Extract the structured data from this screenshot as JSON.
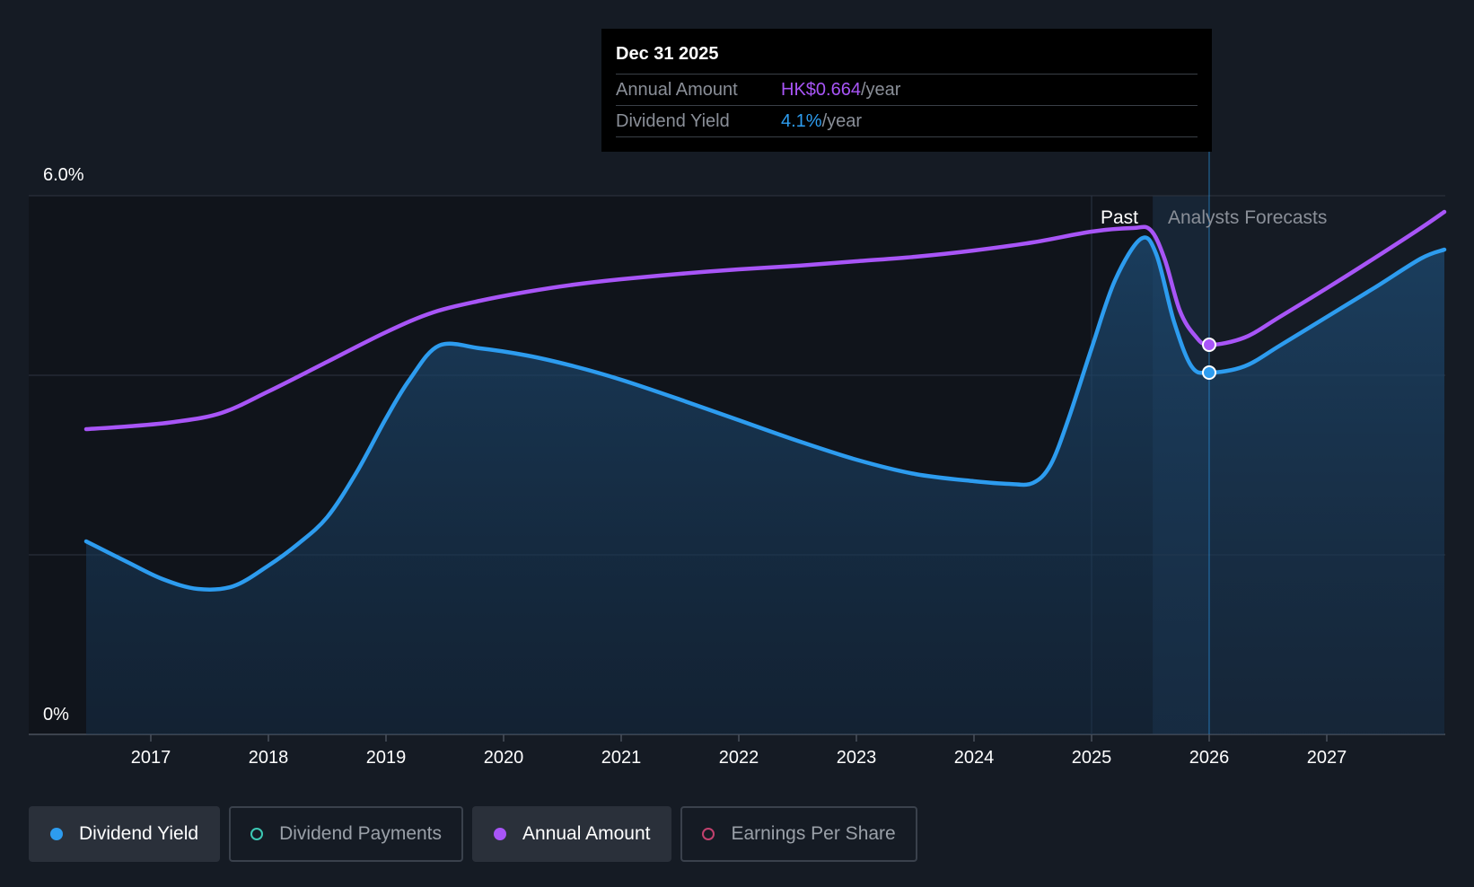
{
  "tooltip": {
    "date": "Dec 31 2025",
    "rows": [
      {
        "label": "Annual Amount",
        "value": "HK$0.664",
        "unit": "/year",
        "color": "#a855f7"
      },
      {
        "label": "Dividend Yield",
        "value": "4.1%",
        "unit": "/year",
        "color": "#2d9cef"
      }
    ]
  },
  "regions": {
    "past": "Past",
    "forecast": "Analysts Forecasts"
  },
  "legend": [
    {
      "label": "Dividend Yield",
      "color": "#2d9cef",
      "active": true,
      "filled": true
    },
    {
      "label": "Dividend Payments",
      "color": "#3cc8b4",
      "active": false,
      "filled": false
    },
    {
      "label": "Annual Amount",
      "color": "#a855f7",
      "active": true,
      "filled": true
    },
    {
      "label": "Earnings Per Share",
      "color": "#c2416e",
      "active": false,
      "filled": false
    }
  ],
  "chart_data": {
    "type": "line",
    "y_ticks": [
      "6.0%",
      "0%"
    ],
    "ylim": [
      0,
      6.0
    ],
    "x_ticks": [
      "2017",
      "2018",
      "2019",
      "2020",
      "2021",
      "2022",
      "2023",
      "2024",
      "2025",
      "2026",
      "2027"
    ],
    "past_end": 2025.52,
    "highlight_x": 2026.0,
    "series": [
      {
        "name": "Dividend Yield",
        "color": "#2d9cef",
        "area": true,
        "x": [
          2016.45,
          2016.8,
          2017.1,
          2017.4,
          2017.7,
          2018.0,
          2018.25,
          2018.5,
          2018.75,
          2019.0,
          2019.2,
          2019.45,
          2019.8,
          2020.2,
          2020.6,
          2021.0,
          2021.5,
          2022.0,
          2022.5,
          2023.0,
          2023.5,
          2024.0,
          2024.3,
          2024.5,
          2024.65,
          2024.8,
          2025.0,
          2025.2,
          2025.42,
          2025.55,
          2025.7,
          2025.85,
          2026.0,
          2026.3,
          2026.6,
          2027.0,
          2027.4,
          2027.8,
          2028.0
        ],
        "y": [
          2.15,
          1.92,
          1.73,
          1.62,
          1.65,
          1.88,
          2.12,
          2.42,
          2.92,
          3.52,
          3.95,
          4.33,
          4.3,
          4.22,
          4.1,
          3.95,
          3.73,
          3.5,
          3.27,
          3.06,
          2.9,
          2.82,
          2.79,
          2.8,
          3.0,
          3.5,
          4.3,
          5.06,
          5.52,
          5.35,
          4.6,
          4.1,
          4.03,
          4.1,
          4.33,
          4.65,
          4.97,
          5.3,
          5.4
        ]
      },
      {
        "name": "Annual Amount",
        "color": "#a855f7",
        "area": false,
        "x": [
          2016.45,
          2016.8,
          2017.2,
          2017.6,
          2018.0,
          2018.5,
          2019.0,
          2019.4,
          2019.8,
          2020.2,
          2020.6,
          2021.0,
          2021.5,
          2022.0,
          2022.5,
          2023.0,
          2023.5,
          2024.0,
          2024.5,
          2025.0,
          2025.35,
          2025.5,
          2025.62,
          2025.75,
          2025.88,
          2026.0,
          2026.3,
          2026.6,
          2027.0,
          2027.4,
          2027.8,
          2028.0
        ],
        "y": [
          3.4,
          3.43,
          3.48,
          3.58,
          3.82,
          4.15,
          4.48,
          4.7,
          4.83,
          4.93,
          5.01,
          5.07,
          5.13,
          5.18,
          5.22,
          5.27,
          5.32,
          5.39,
          5.48,
          5.6,
          5.64,
          5.62,
          5.3,
          4.72,
          4.44,
          4.34,
          4.42,
          4.65,
          4.97,
          5.3,
          5.64,
          5.82
        ]
      }
    ]
  }
}
